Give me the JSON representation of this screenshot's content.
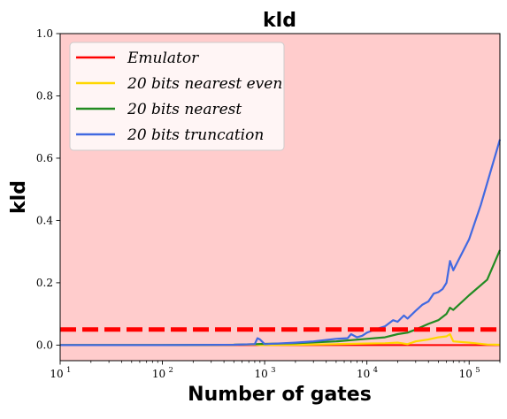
{
  "chart_data": {
    "type": "line",
    "title": "kld",
    "xlabel": "Number of gates",
    "ylabel": "kld",
    "xscale": "log",
    "xlim": [
      10,
      200000
    ],
    "ylim": [
      -0.05,
      1.0
    ],
    "x_ticks": [
      10,
      100,
      1000,
      10000,
      100000
    ],
    "x_tick_labels": [
      {
        "base": "10",
        "exp": "1"
      },
      {
        "base": "10",
        "exp": "2"
      },
      {
        "base": "10",
        "exp": "3"
      },
      {
        "base": "10",
        "exp": "4"
      },
      {
        "base": "10",
        "exp": "5"
      }
    ],
    "y_ticks": [
      0.0,
      0.2,
      0.4,
      0.6,
      0.8,
      1.0
    ],
    "y_tick_labels": [
      "0.0",
      "0.2",
      "0.4",
      "0.6",
      "0.8",
      "1.0"
    ],
    "background_color": "#ffcccc",
    "threshold": {
      "y": 0.05,
      "color": "#ff0000",
      "style": "dashed"
    },
    "legend_placement": "top-left",
    "series": [
      {
        "name": "Emulator",
        "color": "#ff0000",
        "x": [
          10,
          100,
          1000,
          10000,
          200000
        ],
        "y": [
          0.0,
          0.0,
          0.0,
          0.0,
          0.0
        ]
      },
      {
        "name": "20 bits nearest even",
        "color": "#ffd700",
        "x": [
          10,
          100,
          500,
          800,
          900,
          2000,
          5000,
          10000,
          15000,
          20000,
          25000,
          30000,
          40000,
          50000,
          60000,
          65000,
          70000,
          100000,
          150000,
          200000
        ],
        "y": [
          0.0,
          0.0,
          0.001,
          0.002,
          0.0,
          0.001,
          0.003,
          0.005,
          0.006,
          0.008,
          0.003,
          0.012,
          0.018,
          0.025,
          0.028,
          0.035,
          0.012,
          0.008,
          0.002,
          0.001
        ]
      },
      {
        "name": "20 bits nearest",
        "color": "#228b22",
        "x": [
          10,
          100,
          500,
          800,
          1000,
          2000,
          5000,
          10000,
          15000,
          20000,
          25000,
          30000,
          40000,
          50000,
          60000,
          65000,
          70000,
          100000,
          150000,
          200000
        ],
        "y": [
          0.0,
          0.0,
          0.001,
          0.003,
          0.004,
          0.006,
          0.012,
          0.02,
          0.025,
          0.035,
          0.04,
          0.05,
          0.068,
          0.08,
          0.1,
          0.12,
          0.113,
          0.16,
          0.21,
          0.305
        ]
      },
      {
        "name": "20 bits truncation",
        "color": "#4169e1",
        "x": [
          10,
          100,
          500,
          800,
          850,
          900,
          1000,
          2000,
          3000,
          5000,
          6500,
          7000,
          8000,
          9000,
          10000,
          11000,
          12000,
          15000,
          18000,
          20000,
          23000,
          25000,
          30000,
          35000,
          40000,
          45000,
          50000,
          55000,
          60000,
          65000,
          70000,
          100000,
          130000,
          200000
        ],
        "y": [
          0.0,
          0.0,
          0.001,
          0.003,
          0.022,
          0.018,
          0.003,
          0.008,
          0.012,
          0.02,
          0.022,
          0.035,
          0.025,
          0.03,
          0.04,
          0.045,
          0.05,
          0.06,
          0.08,
          0.075,
          0.095,
          0.085,
          0.11,
          0.13,
          0.14,
          0.165,
          0.17,
          0.18,
          0.2,
          0.27,
          0.24,
          0.34,
          0.45,
          0.66
        ]
      }
    ]
  }
}
